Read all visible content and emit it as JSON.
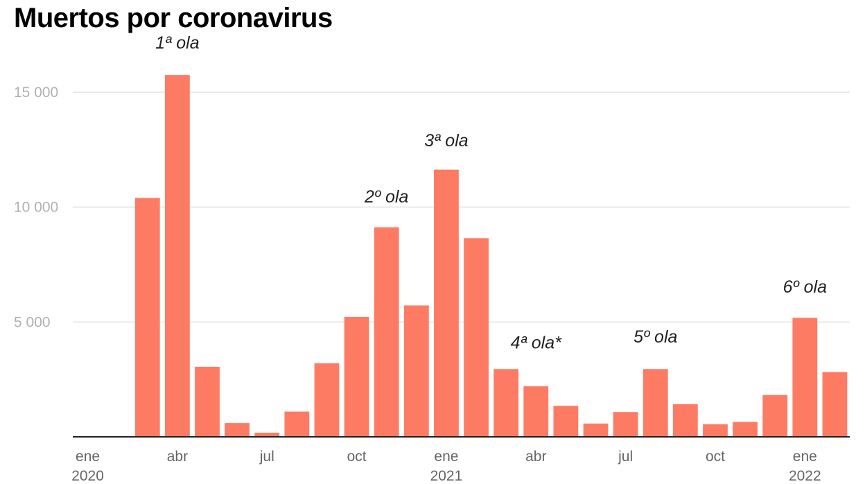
{
  "title": "Muertos por coronavirus",
  "chart_data": {
    "type": "bar",
    "title": "Muertos por coronavirus",
    "xlabel": "",
    "ylabel": "",
    "ylim": [
      0,
      16000
    ],
    "yticks": [
      5000,
      10000,
      15000
    ],
    "ytick_labels": [
      "5 000",
      "10 000",
      "15 000"
    ],
    "grid": true,
    "color": "#fe7b63",
    "categories": [
      "2020-01",
      "2020-02",
      "2020-03",
      "2020-04",
      "2020-05",
      "2020-06",
      "2020-07",
      "2020-08",
      "2020-09",
      "2020-10",
      "2020-11",
      "2020-12",
      "2021-01",
      "2021-02",
      "2021-03",
      "2021-04",
      "2021-05",
      "2021-06",
      "2021-07",
      "2021-08",
      "2021-09",
      "2021-10",
      "2021-11",
      "2021-12",
      "2022-01",
      "2022-02"
    ],
    "values": [
      0,
      0,
      10400,
      15750,
      3050,
      600,
      180,
      1100,
      3200,
      5220,
      9120,
      5720,
      11630,
      8650,
      2950,
      2200,
      1350,
      580,
      1080,
      2950,
      1420,
      550,
      650,
      1820,
      5180,
      2820
    ],
    "x_tick_labels": [
      {
        "category": "2020-01",
        "line1": "ene",
        "line2": "2020"
      },
      {
        "category": "2020-04",
        "line1": "abr",
        "line2": ""
      },
      {
        "category": "2020-07",
        "line1": "jul",
        "line2": ""
      },
      {
        "category": "2020-10",
        "line1": "oct",
        "line2": ""
      },
      {
        "category": "2021-01",
        "line1": "ene",
        "line2": "2021"
      },
      {
        "category": "2021-04",
        "line1": "abr",
        "line2": ""
      },
      {
        "category": "2021-07",
        "line1": "jul",
        "line2": ""
      },
      {
        "category": "2021-10",
        "line1": "oct",
        "line2": ""
      },
      {
        "category": "2022-01",
        "line1": "ene",
        "line2": "2022"
      }
    ],
    "annotations": [
      {
        "text": "1ª ola",
        "category": "2020-04",
        "value": 16900
      },
      {
        "text": "2º ola",
        "category": "2020-11",
        "value": 10200
      },
      {
        "text": "3ª ola",
        "category": "2021-01",
        "value": 12650
      },
      {
        "text": "4ª ola*",
        "category": "2021-04",
        "value": 3850
      },
      {
        "text": "5º ola",
        "category": "2021-08",
        "value": 4100
      },
      {
        "text": "6º ola",
        "category": "2022-01",
        "value": 6280
      }
    ]
  }
}
